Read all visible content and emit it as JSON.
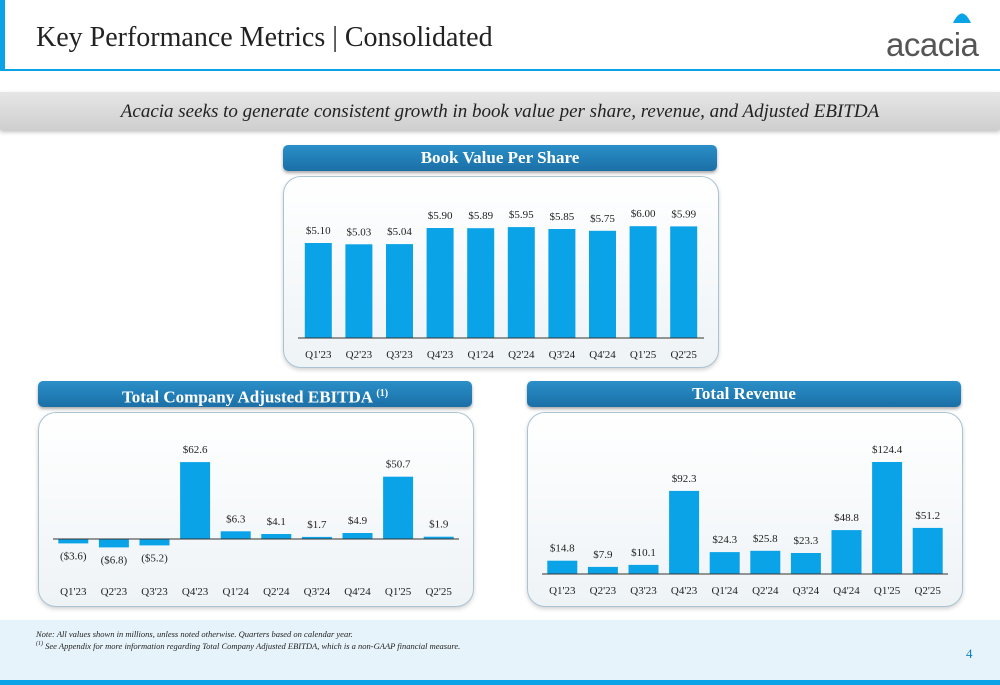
{
  "header": {
    "title": "Key Performance Metrics | Consolidated",
    "logo_text": "acacia",
    "accent": "#0aa3e8"
  },
  "banner": {
    "text": "Acacia seeks to generate consistent growth in book value per share, revenue, and Adjusted EBITDA"
  },
  "colors": {
    "bar": "#0aa3e8",
    "pill": "#1e7fb8",
    "axis": "#333333"
  },
  "chart_data": [
    {
      "id": "bvps",
      "type": "bar",
      "title": "Book Value Per Share",
      "categories": [
        "Q1'23",
        "Q2'23",
        "Q3'23",
        "Q4'23",
        "Q1'24",
        "Q2'24",
        "Q3'24",
        "Q4'24",
        "Q1'25",
        "Q2'25"
      ],
      "values": [
        5.1,
        5.03,
        5.04,
        5.9,
        5.89,
        5.95,
        5.85,
        5.75,
        6.0,
        5.99
      ],
      "labels": [
        "$5.10",
        "$5.03",
        "$5.04",
        "$5.90",
        "$5.89",
        "$5.95",
        "$5.85",
        "$5.75",
        "$6.00",
        "$5.99"
      ],
      "ylim": [
        0,
        6.6
      ]
    },
    {
      "id": "ebitda",
      "type": "bar",
      "title": "Total Company Adjusted EBITDA",
      "title_sup": "(1)",
      "categories": [
        "Q1'23",
        "Q2'23",
        "Q3'23",
        "Q4'23",
        "Q1'24",
        "Q2'24",
        "Q3'24",
        "Q4'24",
        "Q1'25",
        "Q2'25"
      ],
      "values": [
        -3.6,
        -6.8,
        -5.2,
        62.6,
        6.3,
        4.1,
        1.7,
        4.9,
        50.7,
        1.9
      ],
      "labels": [
        "($3.6)",
        "($6.8)",
        "($5.2)",
        "$62.6",
        "$6.3",
        "$4.1",
        "$1.7",
        "$4.9",
        "$50.7",
        "$1.9"
      ],
      "ylim": [
        -10,
        70
      ]
    },
    {
      "id": "revenue",
      "type": "bar",
      "title": "Total Revenue",
      "categories": [
        "Q1'23",
        "Q2'23",
        "Q3'23",
        "Q4'23",
        "Q1'24",
        "Q2'24",
        "Q3'24",
        "Q4'24",
        "Q1'25",
        "Q2'25"
      ],
      "values": [
        14.8,
        7.9,
        10.1,
        92.3,
        24.3,
        25.8,
        23.3,
        48.8,
        124.4,
        51.2
      ],
      "labels": [
        "$14.8",
        "$7.9",
        "$10.1",
        "$92.3",
        "$24.3",
        "$25.8",
        "$23.3",
        "$48.8",
        "$124.4",
        "$51.2"
      ],
      "ylim": [
        0,
        140
      ]
    }
  ],
  "footer": {
    "note1": "Note: All values shown in millions, unless noted otherwise. Quarters based on calendar year.",
    "note2_sup": "(1)",
    "note2": " See Appendix for more information regarding Total Company Adjusted EBITDA, which is a non-GAAP financial measure.",
    "page_number": "4"
  }
}
